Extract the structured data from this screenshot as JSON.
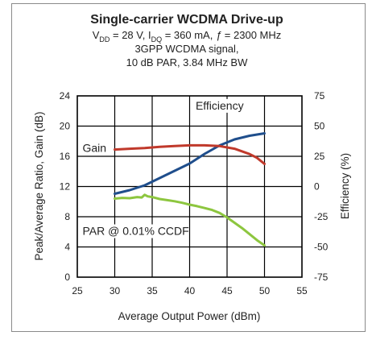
{
  "chart_data": {
    "type": "line",
    "title": "Single-carrier WCDMA Drive-up",
    "subtitle_lines": [
      "28 V, 360 mA, 2300 MHz",
      "3GPP WCDMA signal,",
      "10 dB PAR, 3.84 MHz BW"
    ],
    "conditions": {
      "vdd_symbol": "V",
      "vdd_sub": "DD",
      "vdd_value": " = 28 V, ",
      "idq_symbol": "I",
      "idq_sub": "DQ",
      "idq_value": " = 360 mA, ",
      "freq_symbol": "ƒ",
      "freq_value": " = 2300 MHz"
    },
    "xlabel": "Average Output Power (dBm)",
    "ylabel_left": "Peak/Average Ratio, Gain (dB)",
    "ylabel_right": "Efficiency (%)",
    "xlim": [
      25,
      55
    ],
    "ylim_left": [
      0,
      24
    ],
    "ylim_right": [
      -75,
      75
    ],
    "x_ticks": [
      "25",
      "30",
      "35",
      "40",
      "45",
      "50",
      "55"
    ],
    "y_ticks_left": [
      "0",
      "4",
      "8",
      "12",
      "16",
      "20",
      "24"
    ],
    "y_ticks_right": [
      "-75",
      "-50",
      "-25",
      "0",
      "25",
      "50",
      "75"
    ],
    "grid": true,
    "series": [
      {
        "name": "Efficiency",
        "axis": "right",
        "color": "#1f4e8c",
        "x": [
          30,
          32,
          34,
          36,
          38,
          40,
          42,
          44,
          46,
          48,
          50
        ],
        "y": [
          -6,
          -3,
          1,
          7,
          13,
          19,
          27,
          34,
          39,
          42,
          44
        ]
      },
      {
        "name": "Gain",
        "axis": "left",
        "color": "#c0392b",
        "x": [
          30,
          32,
          34,
          36,
          38,
          40,
          42,
          44,
          46,
          48,
          49,
          50
        ],
        "y": [
          16.9,
          17.0,
          17.1,
          17.25,
          17.35,
          17.45,
          17.45,
          17.35,
          17.0,
          16.3,
          15.8,
          15.0
        ]
      },
      {
        "name": "PAR @ 0.01% CCDF",
        "axis": "left",
        "color": "#8dc63f",
        "x": [
          30,
          31,
          32,
          33,
          33.6,
          34,
          34.4,
          35,
          36,
          37,
          38,
          39,
          40,
          41,
          42,
          43,
          44,
          45,
          46,
          47,
          48,
          49,
          50
        ],
        "y": [
          10.4,
          10.5,
          10.45,
          10.6,
          10.55,
          10.9,
          10.7,
          10.6,
          10.35,
          10.2,
          10.05,
          9.85,
          9.6,
          9.4,
          9.15,
          8.9,
          8.5,
          7.9,
          7.2,
          6.5,
          5.7,
          4.9,
          4.2
        ]
      }
    ],
    "annotations": [
      {
        "text": "Efficiency",
        "x": 40.8,
        "y": 22.2
      },
      {
        "text": "Gain",
        "x": 25.7,
        "y": 16.6
      },
      {
        "text": "PAR  @ 0.01% CCDF",
        "x": 25.7,
        "y": 5.6
      }
    ],
    "colors": {
      "efficiency": "#1f4e8c",
      "gain": "#c0392b",
      "par": "#8dc63f",
      "grid": "#000000",
      "frame": "#8a8a8a"
    }
  }
}
